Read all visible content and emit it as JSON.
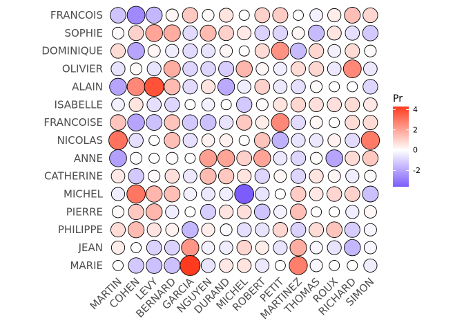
{
  "chart_data": {
    "type": "balloon",
    "rows": [
      "FRANCOIS",
      "SOPHIE",
      "DOMINIQUE",
      "OLIVIER",
      "ALAIN",
      "ISABELLE",
      "FRANCOISE",
      "NICOLAS",
      "ANNE",
      "CATHERINE",
      "MICHEL",
      "PIERRE",
      "PHILIPPE",
      "JEAN",
      "MARIE"
    ],
    "columns": [
      "MARTIN",
      "COHEN",
      "LEVY",
      "BERNARD",
      "GARCIA",
      "NGUYEN",
      "DURAND",
      "MICHEL",
      "ROBERT",
      "PETIT",
      "MARTINEZ",
      "THOMAS",
      "ROUX",
      "RICHARD",
      "SIMON"
    ],
    "values": [
      [
        -1.3,
        -2.6,
        -1.6,
        0.2,
        1.2,
        0.1,
        0.6,
        0.0,
        1.0,
        1.1,
        0.0,
        -0.3,
        0.4,
        1.4,
        0.9
      ],
      [
        0.1,
        1.0,
        2.0,
        1.8,
        -0.8,
        1.5,
        1.0,
        0.5,
        -1.0,
        -0.9,
        0.2,
        -1.5,
        0.6,
        -0.7,
        -1.2
      ],
      [
        0.8,
        -2.0,
        0.2,
        -0.4,
        -0.8,
        -0.6,
        0.2,
        0.0,
        0.8,
        2.4,
        -1.5,
        0.9,
        -0.3,
        0.8,
        0.1
      ],
      [
        -0.6,
        0.1,
        -0.6,
        1.8,
        -0.9,
        -0.9,
        -1.1,
        1.6,
        0.2,
        -0.4,
        0.8,
        0.9,
        -0.5,
        2.6,
        -0.5
      ],
      [
        -2.0,
        2.6,
        3.8,
        1.5,
        -0.8,
        0.6,
        -1.9,
        -0.4,
        1.0,
        -0.5,
        -0.7,
        0.1,
        0.0,
        0.0,
        -0.9
      ],
      [
        -0.3,
        0.6,
        -0.7,
        -0.9,
        0.0,
        -0.3,
        0.0,
        -1.2,
        0.1,
        0.6,
        0.9,
        0.7,
        0.7,
        0.8,
        0.5
      ],
      [
        1.3,
        -2.0,
        -1.4,
        1.3,
        -1.2,
        -1.4,
        -0.6,
        1.2,
        0.4,
        2.6,
        -0.8,
        0.2,
        0.0,
        0.8,
        0.8
      ],
      [
        3.1,
        -0.7,
        0.0,
        1.4,
        -0.7,
        0.3,
        0.3,
        0.0,
        1.3,
        -1.7,
        -0.6,
        -0.5,
        0.3,
        -0.8,
        2.9
      ],
      [
        -2.1,
        -0.1,
        0.0,
        0.1,
        0.0,
        2.1,
        2.0,
        1.0,
        2.0,
        -0.5,
        -0.9,
        0.1,
        -2.0,
        0.8,
        1.2
      ],
      [
        0.5,
        -1.2,
        0.1,
        0.7,
        -0.5,
        1.5,
        1.2,
        0.6,
        -0.9,
        0.2,
        -0.9,
        0.6,
        0.2,
        -0.4,
        0.1
      ],
      [
        -0.4,
        3.0,
        1.6,
        1.4,
        -0.3,
        -0.5,
        -0.4,
        -3.6,
        -0.6,
        0.0,
        1.1,
        0.5,
        0.9,
        1.0,
        -1.4
      ],
      [
        0.1,
        1.2,
        1.6,
        -0.4,
        0.0,
        -1.1,
        0.6,
        0.7,
        -1.3,
        -0.3,
        1.4,
        0.0,
        0.0,
        -0.4,
        0.2
      ],
      [
        0.8,
        1.5,
        0.6,
        0.3,
        -1.6,
        0.4,
        -0.1,
        -0.7,
        -0.6,
        0.9,
        -1.0,
        0.8,
        1.3,
        -1.1,
        -0.2
      ],
      [
        0.4,
        0.0,
        -1.0,
        -1.0,
        2.3,
        -0.3,
        -0.4,
        0.9,
        0.4,
        -0.6,
        1.8,
        -0.2,
        -0.6,
        -1.6,
        -0.2
      ],
      [
        0.0,
        -1.2,
        -1.4,
        -1.4,
        4.3,
        -0.6,
        0.5,
        0.6,
        -0.5,
        0.0,
        2.8,
        -0.2,
        0.0,
        0.0,
        -0.4
      ]
    ],
    "legend": {
      "title": "Pr",
      "ticks": [
        4,
        2,
        0,
        -2
      ],
      "range": [
        -3.6,
        4.3
      ],
      "low_color": "#7c5cfb",
      "mid_color": "#ffffff",
      "high_color": "#ff3b1f",
      "placement": "right"
    },
    "grid": false
  }
}
